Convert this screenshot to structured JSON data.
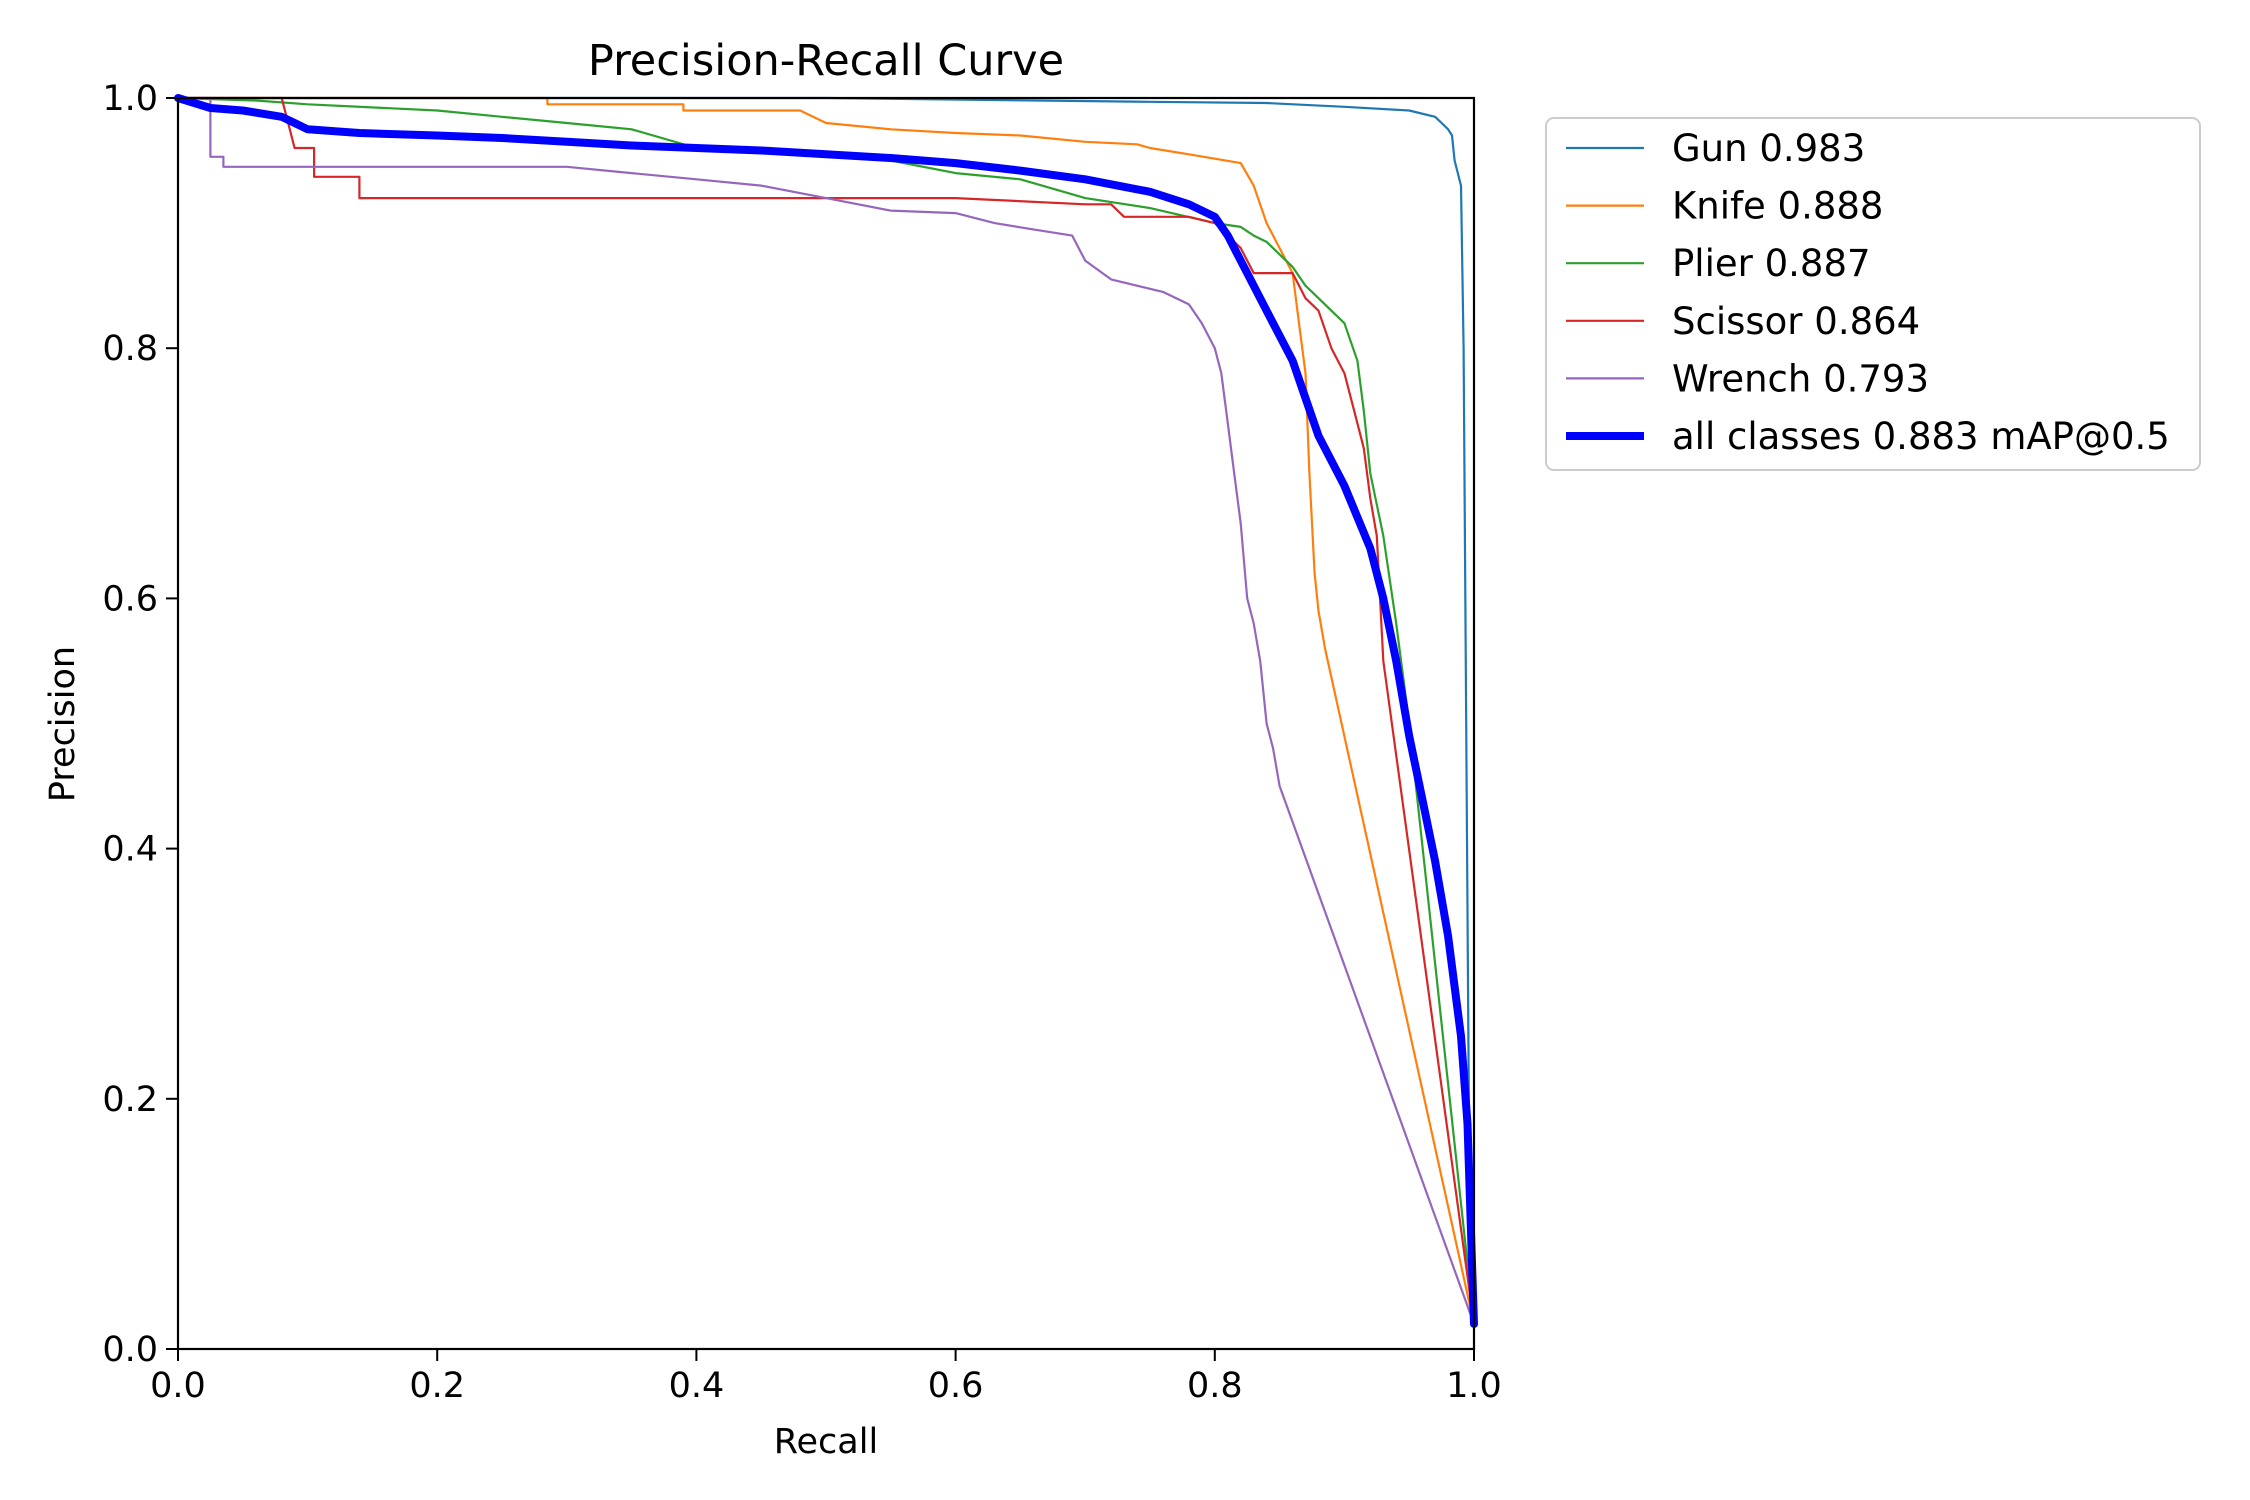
{
  "chart_data": {
    "type": "line",
    "title": "Precision-Recall Curve",
    "xlabel": "Recall",
    "ylabel": "Precision",
    "xlim": [
      0,
      1
    ],
    "ylim": [
      0,
      1
    ],
    "x_ticks": [
      "0.0",
      "0.2",
      "0.4",
      "0.6",
      "0.8",
      "1.0"
    ],
    "y_ticks": [
      "0.0",
      "0.2",
      "0.4",
      "0.6",
      "0.8",
      "1.0"
    ],
    "grid": false,
    "legend_position": "outside-upper-right",
    "series": [
      {
        "name": "Gun 0.983",
        "color": "#1f77b4",
        "emphasis": "normal",
        "points": [
          [
            0.0,
            1.0
          ],
          [
            0.5,
            1.0
          ],
          [
            0.75,
            0.997
          ],
          [
            0.84,
            0.996
          ],
          [
            0.9,
            0.993
          ],
          [
            0.95,
            0.99
          ],
          [
            0.97,
            0.985
          ],
          [
            0.975,
            0.98
          ],
          [
            0.98,
            0.975
          ],
          [
            0.983,
            0.97
          ],
          [
            0.985,
            0.95
          ],
          [
            0.99,
            0.93
          ],
          [
            0.992,
            0.8
          ],
          [
            0.994,
            0.5
          ],
          [
            0.996,
            0.2
          ],
          [
            1.0,
            0.02
          ]
        ]
      },
      {
        "name": "Knife 0.888",
        "color": "#ff7f0e",
        "emphasis": "normal",
        "points": [
          [
            0.0,
            1.0
          ],
          [
            0.285,
            1.0
          ],
          [
            0.285,
            0.995
          ],
          [
            0.39,
            0.995
          ],
          [
            0.39,
            0.99
          ],
          [
            0.48,
            0.99
          ],
          [
            0.5,
            0.98
          ],
          [
            0.55,
            0.975
          ],
          [
            0.6,
            0.972
          ],
          [
            0.65,
            0.97
          ],
          [
            0.7,
            0.965
          ],
          [
            0.74,
            0.963
          ],
          [
            0.75,
            0.96
          ],
          [
            0.78,
            0.955
          ],
          [
            0.82,
            0.948
          ],
          [
            0.83,
            0.93
          ],
          [
            0.84,
            0.9
          ],
          [
            0.85,
            0.88
          ],
          [
            0.86,
            0.86
          ],
          [
            0.865,
            0.82
          ],
          [
            0.87,
            0.78
          ],
          [
            0.873,
            0.7
          ],
          [
            0.877,
            0.62
          ],
          [
            0.88,
            0.59
          ],
          [
            0.885,
            0.56
          ],
          [
            1.0,
            0.02
          ]
        ]
      },
      {
        "name": "Plier 0.887",
        "color": "#2ca02c",
        "emphasis": "normal",
        "points": [
          [
            0.0,
            1.0
          ],
          [
            0.06,
            0.998
          ],
          [
            0.1,
            0.995
          ],
          [
            0.2,
            0.99
          ],
          [
            0.25,
            0.985
          ],
          [
            0.3,
            0.98
          ],
          [
            0.35,
            0.975
          ],
          [
            0.4,
            0.96
          ],
          [
            0.45,
            0.958
          ],
          [
            0.5,
            0.955
          ],
          [
            0.55,
            0.95
          ],
          [
            0.6,
            0.94
          ],
          [
            0.65,
            0.935
          ],
          [
            0.7,
            0.92
          ],
          [
            0.75,
            0.912
          ],
          [
            0.8,
            0.9
          ],
          [
            0.82,
            0.897
          ],
          [
            0.83,
            0.89
          ],
          [
            0.84,
            0.885
          ],
          [
            0.85,
            0.875
          ],
          [
            0.86,
            0.865
          ],
          [
            0.87,
            0.85
          ],
          [
            0.88,
            0.84
          ],
          [
            0.89,
            0.83
          ],
          [
            0.9,
            0.82
          ],
          [
            0.91,
            0.79
          ],
          [
            0.915,
            0.75
          ],
          [
            0.92,
            0.7
          ],
          [
            0.93,
            0.65
          ],
          [
            0.94,
            0.58
          ],
          [
            0.95,
            0.5
          ],
          [
            1.0,
            0.02
          ]
        ]
      },
      {
        "name": "Scissor 0.864",
        "color": "#d62728",
        "emphasis": "normal",
        "points": [
          [
            0.0,
            1.0
          ],
          [
            0.08,
            1.0
          ],
          [
            0.09,
            0.96
          ],
          [
            0.105,
            0.96
          ],
          [
            0.105,
            0.937
          ],
          [
            0.14,
            0.937
          ],
          [
            0.14,
            0.92
          ],
          [
            0.25,
            0.92
          ],
          [
            0.5,
            0.92
          ],
          [
            0.6,
            0.92
          ],
          [
            0.7,
            0.915
          ],
          [
            0.72,
            0.915
          ],
          [
            0.73,
            0.905
          ],
          [
            0.78,
            0.905
          ],
          [
            0.8,
            0.9
          ],
          [
            0.82,
            0.88
          ],
          [
            0.83,
            0.86
          ],
          [
            0.86,
            0.86
          ],
          [
            0.87,
            0.84
          ],
          [
            0.88,
            0.83
          ],
          [
            0.89,
            0.8
          ],
          [
            0.9,
            0.78
          ],
          [
            0.905,
            0.76
          ],
          [
            0.91,
            0.74
          ],
          [
            0.915,
            0.72
          ],
          [
            0.92,
            0.68
          ],
          [
            0.925,
            0.65
          ],
          [
            0.93,
            0.55
          ],
          [
            1.0,
            0.02
          ]
        ]
      },
      {
        "name": "Wrench 0.793",
        "color": "#9467bd",
        "emphasis": "normal",
        "points": [
          [
            0.0,
            1.0
          ],
          [
            0.025,
            1.0
          ],
          [
            0.025,
            0.953
          ],
          [
            0.035,
            0.953
          ],
          [
            0.035,
            0.945
          ],
          [
            0.3,
            0.945
          ],
          [
            0.35,
            0.94
          ],
          [
            0.4,
            0.935
          ],
          [
            0.45,
            0.93
          ],
          [
            0.5,
            0.92
          ],
          [
            0.55,
            0.91
          ],
          [
            0.6,
            0.908
          ],
          [
            0.63,
            0.9
          ],
          [
            0.66,
            0.895
          ],
          [
            0.69,
            0.89
          ],
          [
            0.7,
            0.87
          ],
          [
            0.72,
            0.855
          ],
          [
            0.74,
            0.85
          ],
          [
            0.76,
            0.845
          ],
          [
            0.78,
            0.835
          ],
          [
            0.79,
            0.82
          ],
          [
            0.8,
            0.8
          ],
          [
            0.805,
            0.78
          ],
          [
            0.81,
            0.74
          ],
          [
            0.815,
            0.7
          ],
          [
            0.82,
            0.66
          ],
          [
            0.825,
            0.6
          ],
          [
            0.83,
            0.58
          ],
          [
            0.835,
            0.55
          ],
          [
            0.84,
            0.5
          ],
          [
            0.845,
            0.48
          ],
          [
            0.85,
            0.45
          ],
          [
            1.0,
            0.02
          ]
        ]
      },
      {
        "name": "all classes 0.883 mAP@0.5",
        "color": "#0000ff",
        "emphasis": "bold",
        "points": [
          [
            0.0,
            1.0
          ],
          [
            0.025,
            0.992
          ],
          [
            0.05,
            0.99
          ],
          [
            0.08,
            0.985
          ],
          [
            0.09,
            0.98
          ],
          [
            0.1,
            0.975
          ],
          [
            0.14,
            0.972
          ],
          [
            0.2,
            0.97
          ],
          [
            0.25,
            0.968
          ],
          [
            0.3,
            0.965
          ],
          [
            0.35,
            0.962
          ],
          [
            0.4,
            0.96
          ],
          [
            0.45,
            0.958
          ],
          [
            0.5,
            0.955
          ],
          [
            0.55,
            0.952
          ],
          [
            0.6,
            0.948
          ],
          [
            0.65,
            0.942
          ],
          [
            0.7,
            0.935
          ],
          [
            0.75,
            0.925
          ],
          [
            0.78,
            0.915
          ],
          [
            0.8,
            0.905
          ],
          [
            0.81,
            0.89
          ],
          [
            0.82,
            0.87
          ],
          [
            0.83,
            0.85
          ],
          [
            0.84,
            0.83
          ],
          [
            0.85,
            0.81
          ],
          [
            0.86,
            0.79
          ],
          [
            0.87,
            0.76
          ],
          [
            0.88,
            0.73
          ],
          [
            0.9,
            0.69
          ],
          [
            0.92,
            0.64
          ],
          [
            0.93,
            0.6
          ],
          [
            0.94,
            0.55
          ],
          [
            0.95,
            0.49
          ],
          [
            0.96,
            0.44
          ],
          [
            0.97,
            0.39
          ],
          [
            0.98,
            0.33
          ],
          [
            0.99,
            0.25
          ],
          [
            0.995,
            0.18
          ],
          [
            1.0,
            0.02
          ]
        ]
      }
    ]
  }
}
